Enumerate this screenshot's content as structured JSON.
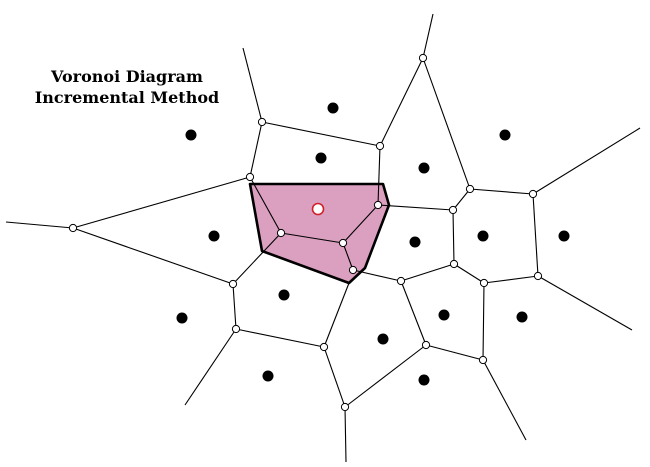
{
  "title": {
    "line1": "Voronoi Diagram",
    "line2": "Incremental Method"
  },
  "colors": {
    "edge": "#000000",
    "vertex_fill": "#ffffff",
    "site": "#000000",
    "new_cell_fill": "#dba0c0",
    "new_site_stroke": "#d0202a"
  },
  "legend_semantics": {
    "sites": "black dots",
    "vertices": "white circles",
    "new_site": "red-outlined circle inside the highlighted cell"
  }
}
